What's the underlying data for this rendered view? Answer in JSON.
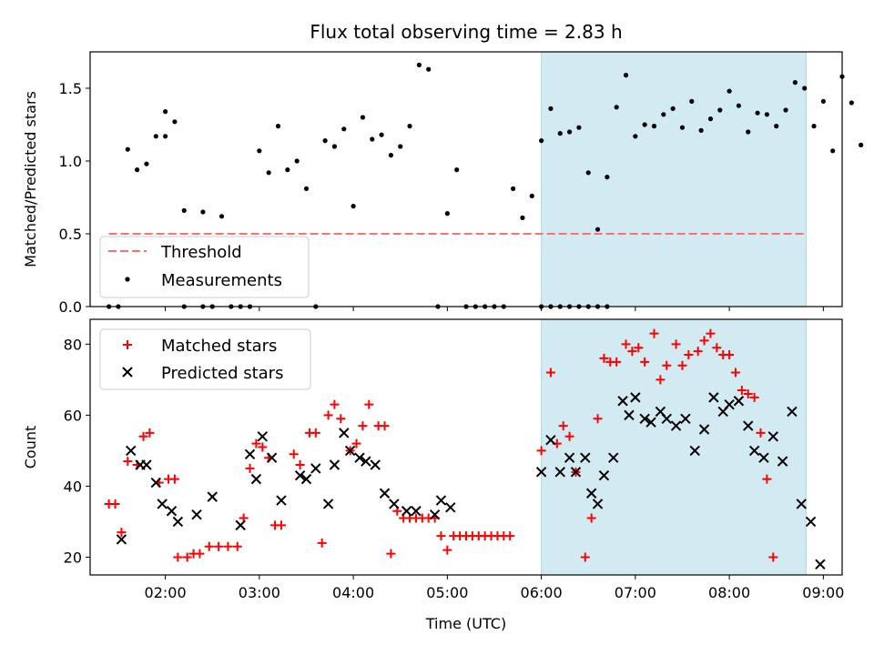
{
  "title": "Flux total observing time = 2.83 h",
  "colors": {
    "highlight": "#add8e6",
    "threshold": "#ff6f6f",
    "matched": "#ff0000",
    "predicted": "#000000",
    "measurement": "#000000"
  },
  "chart_data": [
    {
      "type": "scatter",
      "title": "Flux total observing time = 2.83 h",
      "xlabel": "",
      "ylabel": "Matched/Predicted stars",
      "xlim": [
        "01:12",
        "09:12"
      ],
      "ylim": [
        0,
        1.75
      ],
      "yticks": [
        "0.0",
        "0.5",
        "1.0",
        "1.5"
      ],
      "highlight_span": [
        "06:00",
        "08:49"
      ],
      "legend": {
        "placement": "lower-left",
        "entries": [
          "Threshold",
          "Measurements"
        ]
      },
      "threshold": {
        "name": "Threshold",
        "y": 0.5,
        "x_range": [
          "01:24",
          "08:49"
        ]
      },
      "series": [
        {
          "name": "Measurements",
          "points": [
            [
              "01:24",
              0
            ],
            [
              "01:30",
              0
            ],
            [
              "01:36",
              1.08
            ],
            [
              "01:42",
              0.94
            ],
            [
              "01:48",
              0.98
            ],
            [
              "01:54",
              1.17
            ],
            [
              "02:00",
              1.34
            ],
            [
              "02:00",
              1.17
            ],
            [
              "02:06",
              1.27
            ],
            [
              "02:12",
              0.66
            ],
            [
              "02:12",
              0
            ],
            [
              "02:24",
              0.65
            ],
            [
              "02:24",
              0
            ],
            [
              "02:30",
              0
            ],
            [
              "02:36",
              0.62
            ],
            [
              "02:42",
              0
            ],
            [
              "02:48",
              0
            ],
            [
              "02:54",
              0
            ],
            [
              "03:00",
              1.07
            ],
            [
              "03:06",
              0.92
            ],
            [
              "03:12",
              1.24
            ],
            [
              "03:18",
              0.94
            ],
            [
              "03:24",
              1.0
            ],
            [
              "03:30",
              0.81
            ],
            [
              "03:36",
              0
            ],
            [
              "03:42",
              1.14
            ],
            [
              "03:48",
              1.1
            ],
            [
              "03:54",
              1.22
            ],
            [
              "04:00",
              0.69
            ],
            [
              "04:06",
              1.3
            ],
            [
              "04:12",
              1.15
            ],
            [
              "04:18",
              1.18
            ],
            [
              "04:24",
              1.04
            ],
            [
              "04:30",
              1.1
            ],
            [
              "04:36",
              1.24
            ],
            [
              "04:42",
              1.66
            ],
            [
              "04:48",
              1.63
            ],
            [
              "04:54",
              0
            ],
            [
              "05:00",
              0.64
            ],
            [
              "05:06",
              0.94
            ],
            [
              "05:12",
              0
            ],
            [
              "05:18",
              0
            ],
            [
              "05:24",
              0
            ],
            [
              "05:30",
              0
            ],
            [
              "05:36",
              0
            ],
            [
              "05:42",
              0.81
            ],
            [
              "05:48",
              0.61
            ],
            [
              "05:54",
              0.76
            ],
            [
              "06:00",
              0
            ],
            [
              "06:06",
              0
            ],
            [
              "06:12",
              0
            ],
            [
              "06:18",
              0
            ],
            [
              "06:24",
              0
            ],
            [
              "06:30",
              0
            ],
            [
              "06:36",
              0
            ],
            [
              "06:42",
              0
            ],
            [
              "06:00",
              1.14
            ],
            [
              "06:06",
              1.36
            ],
            [
              "06:12",
              1.19
            ],
            [
              "06:18",
              1.2
            ],
            [
              "06:24",
              1.23
            ],
            [
              "06:30",
              0.92
            ],
            [
              "06:36",
              0.53
            ],
            [
              "06:42",
              0.89
            ],
            [
              "06:48",
              1.37
            ],
            [
              "06:54",
              1.59
            ],
            [
              "07:00",
              1.17
            ],
            [
              "07:06",
              1.25
            ],
            [
              "07:12",
              1.24
            ],
            [
              "07:18",
              1.32
            ],
            [
              "07:24",
              1.36
            ],
            [
              "07:30",
              1.23
            ],
            [
              "07:36",
              1.41
            ],
            [
              "07:42",
              1.21
            ],
            [
              "07:48",
              1.29
            ],
            [
              "07:54",
              1.35
            ],
            [
              "08:00",
              1.48
            ],
            [
              "08:06",
              1.38
            ],
            [
              "08:12",
              1.2
            ],
            [
              "08:18",
              1.33
            ],
            [
              "08:24",
              1.32
            ],
            [
              "08:30",
              1.24
            ],
            [
              "08:36",
              1.35
            ],
            [
              "08:42",
              1.54
            ],
            [
              "08:48",
              1.5
            ],
            [
              "08:54",
              1.24
            ],
            [
              "09:00",
              1.41
            ],
            [
              "09:06",
              1.07
            ],
            [
              "09:12",
              1.58
            ],
            [
              "09:18",
              1.4
            ],
            [
              "09:24",
              1.11
            ]
          ]
        }
      ]
    },
    {
      "type": "scatter",
      "title": "",
      "xlabel": "Time (UTC)",
      "ylabel": "Count",
      "xlim": [
        "01:12",
        "09:12"
      ],
      "ylim": [
        15,
        87
      ],
      "yticks": [
        "20",
        "40",
        "60",
        "80"
      ],
      "xticks": [
        "02:00",
        "03:00",
        "04:00",
        "05:00",
        "06:00",
        "07:00",
        "08:00",
        "09:00"
      ],
      "highlight_span": [
        "06:00",
        "08:49"
      ],
      "legend": {
        "placement": "upper-left",
        "entries": [
          "Matched stars",
          "Predicted stars"
        ]
      },
      "series": [
        {
          "name": "Matched stars",
          "marker": "+",
          "points": [
            [
              "01:24",
              35
            ],
            [
              "01:28",
              35
            ],
            [
              "01:32",
              27
            ],
            [
              "01:36",
              47
            ],
            [
              "01:42",
              46
            ],
            [
              "01:46",
              54
            ],
            [
              "01:50",
              55
            ],
            [
              "01:56",
              41
            ],
            [
              "02:02",
              42
            ],
            [
              "02:06",
              42
            ],
            [
              "02:08",
              20
            ],
            [
              "02:14",
              20
            ],
            [
              "02:18",
              21
            ],
            [
              "02:22",
              21
            ],
            [
              "02:28",
              23
            ],
            [
              "02:34",
              23
            ],
            [
              "02:40",
              23
            ],
            [
              "02:46",
              23
            ],
            [
              "02:50",
              31
            ],
            [
              "02:54",
              45
            ],
            [
              "02:58",
              52
            ],
            [
              "03:02",
              51
            ],
            [
              "03:06",
              48
            ],
            [
              "03:10",
              29
            ],
            [
              "03:14",
              29
            ],
            [
              "03:22",
              49
            ],
            [
              "03:26",
              46
            ],
            [
              "03:32",
              55
            ],
            [
              "03:36",
              55
            ],
            [
              "03:40",
              24
            ],
            [
              "03:44",
              60
            ],
            [
              "03:48",
              63
            ],
            [
              "03:52",
              59
            ],
            [
              "03:58",
              50
            ],
            [
              "04:02",
              52
            ],
            [
              "04:06",
              57
            ],
            [
              "04:10",
              63
            ],
            [
              "04:16",
              57
            ],
            [
              "04:20",
              57
            ],
            [
              "04:24",
              21
            ],
            [
              "04:28",
              33
            ],
            [
              "04:32",
              31
            ],
            [
              "04:36",
              31
            ],
            [
              "04:40",
              31
            ],
            [
              "04:44",
              31
            ],
            [
              "04:48",
              31
            ],
            [
              "04:52",
              31
            ],
            [
              "04:56",
              26
            ],
            [
              "05:00",
              22
            ],
            [
              "05:04",
              26
            ],
            [
              "05:08",
              26
            ],
            [
              "05:12",
              26
            ],
            [
              "05:16",
              26
            ],
            [
              "05:20",
              26
            ],
            [
              "05:24",
              26
            ],
            [
              "05:28",
              26
            ],
            [
              "05:32",
              26
            ],
            [
              "05:36",
              26
            ],
            [
              "05:40",
              26
            ],
            [
              "06:00",
              50
            ],
            [
              "06:06",
              72
            ],
            [
              "06:10",
              52
            ],
            [
              "06:14",
              57
            ],
            [
              "06:18",
              54
            ],
            [
              "06:22",
              44
            ],
            [
              "06:28",
              20
            ],
            [
              "06:32",
              31
            ],
            [
              "06:36",
              59
            ],
            [
              "06:40",
              76
            ],
            [
              "06:44",
              75
            ],
            [
              "06:48",
              75
            ],
            [
              "06:54",
              80
            ],
            [
              "06:58",
              78
            ],
            [
              "07:02",
              79
            ],
            [
              "07:06",
              75
            ],
            [
              "07:12",
              83
            ],
            [
              "07:16",
              70
            ],
            [
              "07:20",
              74
            ],
            [
              "07:26",
              80
            ],
            [
              "07:30",
              74
            ],
            [
              "07:34",
              77
            ],
            [
              "07:40",
              78
            ],
            [
              "07:44",
              81
            ],
            [
              "07:48",
              83
            ],
            [
              "07:52",
              79
            ],
            [
              "07:56",
              77
            ],
            [
              "08:00",
              77
            ],
            [
              "08:04",
              72
            ],
            [
              "08:08",
              67
            ],
            [
              "08:12",
              66
            ],
            [
              "08:16",
              65
            ],
            [
              "08:20",
              55
            ],
            [
              "08:24",
              42
            ],
            [
              "08:28",
              20
            ]
          ]
        },
        {
          "name": "Predicted stars",
          "marker": "x",
          "points": [
            [
              "01:32",
              25
            ],
            [
              "01:38",
              50
            ],
            [
              "01:44",
              46
            ],
            [
              "01:48",
              46
            ],
            [
              "01:54",
              41
            ],
            [
              "01:58",
              35
            ],
            [
              "02:04",
              33
            ],
            [
              "02:08",
              30
            ],
            [
              "02:20",
              32
            ],
            [
              "02:30",
              37
            ],
            [
              "02:48",
              29
            ],
            [
              "02:54",
              49
            ],
            [
              "02:58",
              42
            ],
            [
              "03:02",
              54
            ],
            [
              "03:08",
              48
            ],
            [
              "03:14",
              36
            ],
            [
              "03:26",
              43
            ],
            [
              "03:30",
              42
            ],
            [
              "03:36",
              45
            ],
            [
              "03:44",
              35
            ],
            [
              "03:48",
              46
            ],
            [
              "03:54",
              55
            ],
            [
              "03:58",
              50
            ],
            [
              "04:04",
              48
            ],
            [
              "04:08",
              47
            ],
            [
              "04:14",
              46
            ],
            [
              "04:20",
              38
            ],
            [
              "04:26",
              35
            ],
            [
              "04:34",
              33
            ],
            [
              "04:40",
              33
            ],
            [
              "04:52",
              32
            ],
            [
              "04:56",
              36
            ],
            [
              "05:02",
              34
            ],
            [
              "06:00",
              44
            ],
            [
              "06:06",
              53
            ],
            [
              "06:12",
              44
            ],
            [
              "06:18",
              48
            ],
            [
              "06:22",
              44
            ],
            [
              "06:28",
              48
            ],
            [
              "06:32",
              38
            ],
            [
              "06:36",
              35
            ],
            [
              "06:40",
              43
            ],
            [
              "06:46",
              48
            ],
            [
              "06:52",
              64
            ],
            [
              "06:56",
              60
            ],
            [
              "07:00",
              65
            ],
            [
              "07:06",
              59
            ],
            [
              "07:10",
              58
            ],
            [
              "07:16",
              61
            ],
            [
              "07:20",
              59
            ],
            [
              "07:26",
              57
            ],
            [
              "07:32",
              59
            ],
            [
              "07:38",
              50
            ],
            [
              "07:44",
              56
            ],
            [
              "07:50",
              65
            ],
            [
              "07:56",
              61
            ],
            [
              "08:00",
              63
            ],
            [
              "08:06",
              64
            ],
            [
              "08:12",
              57
            ],
            [
              "08:16",
              50
            ],
            [
              "08:22",
              48
            ],
            [
              "08:28",
              54
            ],
            [
              "08:34",
              47
            ],
            [
              "08:40",
              61
            ],
            [
              "08:46",
              35
            ],
            [
              "08:52",
              30
            ],
            [
              "08:58",
              18
            ]
          ]
        }
      ]
    }
  ]
}
